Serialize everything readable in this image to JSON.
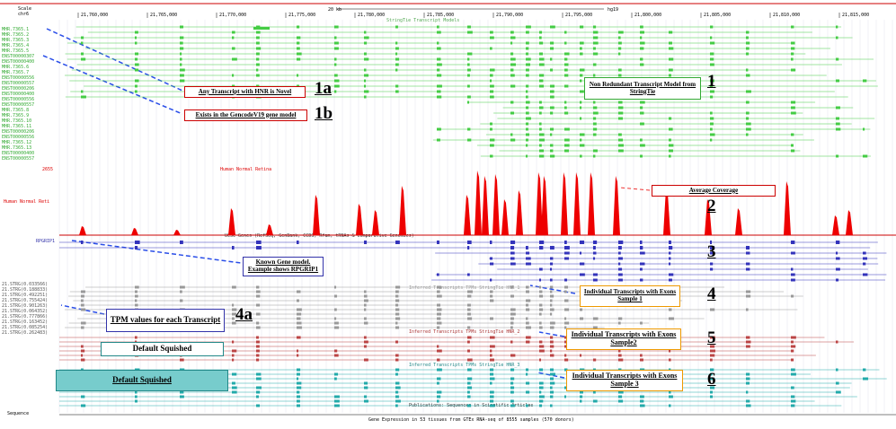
{
  "ruler": {
    "scale": "Scale",
    "chrom": "chr6",
    "span": "20 kb",
    "assembly": "hg19",
    "positions": [
      "21,760,000",
      "21,765,000",
      "21,770,000",
      "21,775,000",
      "21,780,000",
      "21,785,000",
      "21,790,000",
      "21,795,000",
      "21,800,000",
      "21,805,000",
      "21,810,000",
      "21,815,000"
    ]
  },
  "tracks": {
    "stringtie": "StringTie Transcript Models",
    "coverage_name": "Human Normal Retina",
    "coverage_max": "2655",
    "coverage_side": "Human Normal Reti",
    "genes": "UCSC Genes (RefSeq, GenBank, CCDS, Rfam, tRNAs & Comparative Genomics)",
    "sample1": "Inferred Transcripts TPMs StringTie HNR_1",
    "sample2": "Inferred Transcripts TPMs StringTie HNR_2",
    "sample3": "Inferred Transcripts TPMs StringTie HNR_3",
    "pubs": "Publications: Sequences in Scientific Articles",
    "sequence": "Sequence",
    "gtex": "Gene Expression in 53 tissues from GTEx RNA-seq of 8555 samples (570 donors)",
    "gene_left": "RPGRIP1"
  },
  "left_labels": [
    "MHR.7365.1",
    "MHR.7365.2",
    "MHR.7365.3",
    "MHR.7365.4",
    "MHR.7365.5",
    "ENST00000307",
    "ENST00000400",
    "MHR.7365.6",
    "MHR.7365.7",
    "ENST00000556",
    "ENST00000557",
    "ENST00000206",
    "ENST00000400",
    "ENST00000556",
    "ENST00000557",
    "MHR.7365.8",
    "MHR.7365.9",
    "MHR.7365.10",
    "MHR.7365.11",
    "ENST00000206",
    "ENST00000556",
    "MHR.7365.12",
    "MHR.7365.13",
    "ENST00000400",
    "ENST00000557"
  ],
  "tpm_labels": [
    "21.STRG(0.033566)",
    "21.STRG(0.188833)",
    "21.STRG(0.492251)",
    "21.STRG(0.755424)",
    "21.STRG(0.901263)",
    "21.STRG(0.064352)",
    "21.STRG(0.777866)",
    "21.STRG(0.163452)",
    "21.STRG(0.085254)",
    "21.STRG(0.262483)"
  ],
  "annotations": [
    {
      "text": "Any Transcript with HNR is Novel",
      "tag": "1a"
    },
    {
      "text": "Exists in the GencodeV19 gene model",
      "tag": "1b"
    },
    {
      "text": "Non Redundant Transcript Model from StringTie",
      "tag": "1"
    },
    {
      "text": "Average Coverage",
      "tag": "2"
    },
    {
      "text": "Known Gene model. Example shows RPGRIP1",
      "tag": "3"
    },
    {
      "text": "Individual Transcripts with Exons Sample 1",
      "tag": "4"
    },
    {
      "text": "TPM values for each Transcript",
      "tag": "4a"
    },
    {
      "text": "Individual Transcripts with Exons Sample2",
      "tag": "5"
    },
    {
      "text": "Individual Transcripts with Exons Sample 3",
      "tag": "6"
    }
  ],
  "squished": [
    "Default Squished",
    "Default Squished"
  ]
}
